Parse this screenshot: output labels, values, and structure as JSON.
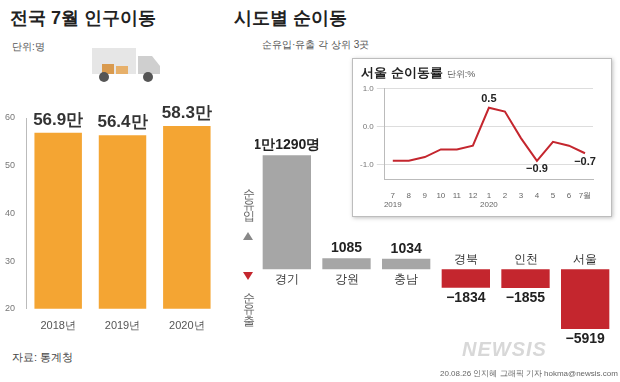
{
  "chart_data": [
    {
      "type": "bar",
      "title": "전국 7월 인구이동",
      "unit": "단위:명",
      "categories": [
        "2018년",
        "2019년",
        "2020년"
      ],
      "values": [
        56.9,
        56.4,
        58.3
      ],
      "value_labels": [
        "56.9만",
        "56.4만",
        "58.3만"
      ],
      "data_labels": true,
      "color": "#f4a533",
      "ylim": [
        20,
        60
      ],
      "yticks": [
        20,
        30,
        40,
        50,
        60
      ],
      "grid": false
    },
    {
      "type": "bar",
      "title": "시도별 순이동",
      "subtitle": "순유입·유출 각 상위 3곳",
      "positive_label": "순유입",
      "negative_label": "순유출",
      "categories": [
        "경기",
        "강원",
        "충남",
        "경북",
        "인천",
        "서울"
      ],
      "values": [
        11290,
        1085,
        1034,
        -1834,
        -1855,
        -5919
      ],
      "value_labels": [
        "1만1290명",
        "1085",
        "1034",
        "−1834",
        "−1855",
        "−5919"
      ],
      "data_labels": true,
      "colors": [
        "#a6a6a6",
        "#a6a6a6",
        "#a6a6a6",
        "#c4262e",
        "#c4262e",
        "#c4262e"
      ],
      "ylim": [
        -7000,
        12000
      ],
      "tick_labels": false,
      "grid": false
    },
    {
      "type": "line",
      "title": "서울 순이동률",
      "unit": "단위:%",
      "categories": [
        [
          "7",
          "2019"
        ],
        [
          "8"
        ],
        [
          "9"
        ],
        [
          "10"
        ],
        [
          "11"
        ],
        [
          "12"
        ],
        [
          "1",
          "2020"
        ],
        [
          "2"
        ],
        [
          "3"
        ],
        [
          "4"
        ],
        [
          "5"
        ],
        [
          "6"
        ],
        [
          "7월"
        ]
      ],
      "values": [
        -0.9,
        -0.9,
        -0.8,
        -0.6,
        -0.6,
        -0.5,
        0.5,
        0.4,
        -0.3,
        -0.9,
        -0.4,
        -0.5,
        -0.7
      ],
      "value_labels": [
        null,
        null,
        null,
        null,
        null,
        null,
        "0.5",
        null,
        null,
        "−0.9",
        null,
        null,
        "−0.7"
      ],
      "data_labels": true,
      "color": "#c4262e",
      "marker": "none",
      "line_style": "solid",
      "ylim": [
        -1.4,
        1.0
      ],
      "yticks": [
        {
          "value": -1.0,
          "label": "-1.0"
        },
        {
          "value": 0.0,
          "label": "0.0"
        },
        {
          "value": 1.0,
          "label": "1.0"
        }
      ],
      "grid": true
    }
  ],
  "source": "자료: 통계청",
  "credit": "20.08.26 인지혜 그래픽 기자 hokma@newsis.com",
  "watermark": "NEWSIS"
}
